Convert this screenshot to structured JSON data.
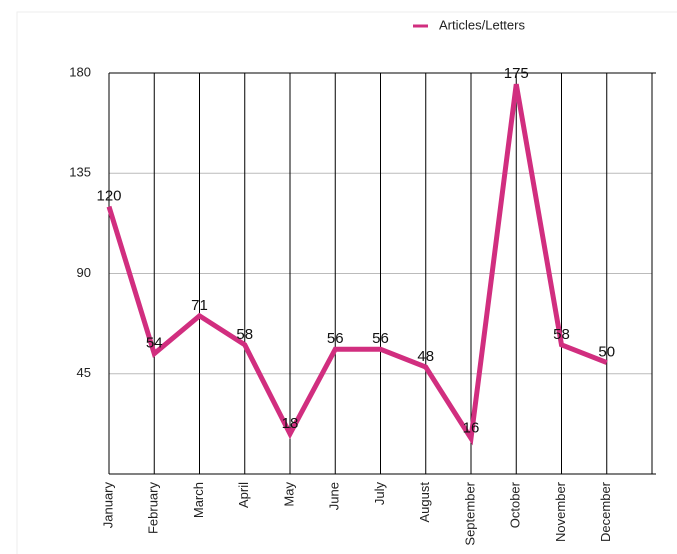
{
  "chart_data": {
    "type": "line",
    "categories": [
      "January",
      "February",
      "March",
      "April",
      "May",
      "June",
      "July",
      "August",
      "September",
      "October",
      "November",
      "December"
    ],
    "series": [
      {
        "name": "Articles/Letters",
        "color": "#d12e7f",
        "values": [
          120,
          54,
          71,
          58,
          18,
          56,
          56,
          48,
          16,
          175,
          58,
          50
        ]
      }
    ],
    "ylim": [
      0,
      180
    ],
    "yticks": [
      45,
      90,
      135,
      180
    ],
    "grid": true,
    "legend": "top"
  }
}
